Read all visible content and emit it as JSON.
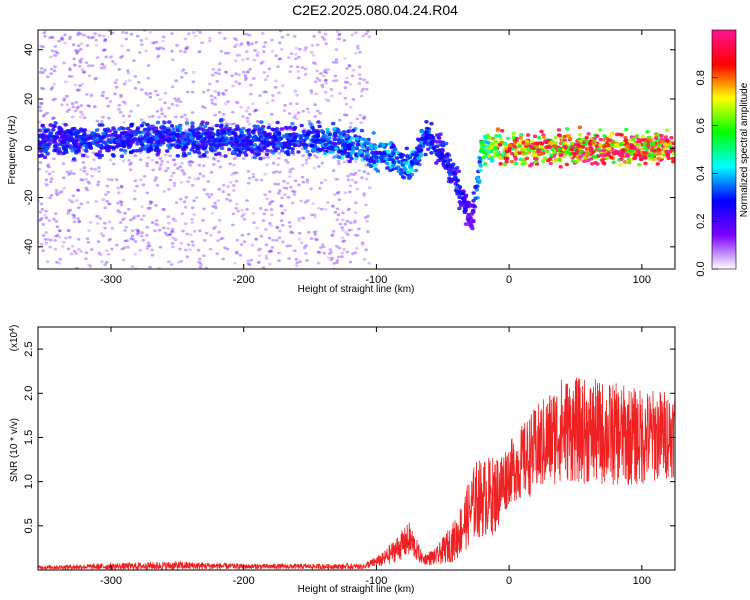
{
  "figure": {
    "title": "C2E2.2025.080.04.24.R04"
  },
  "chart_data": [
    {
      "type": "heatmap",
      "xlabel": "Height of straight line (km)",
      "ylabel": "Frequency (Hz)",
      "xlim": [
        -355,
        125
      ],
      "ylim": [
        -49,
        48
      ],
      "x_ticks": [
        -300,
        -200,
        -100,
        0,
        100
      ],
      "y_ticks": [
        -40,
        -20,
        0,
        20,
        40
      ],
      "colorbar": {
        "label": "Normalized spectral amplitude",
        "range": [
          0,
          1
        ],
        "ticks": [
          0.0,
          0.2,
          0.4,
          0.6,
          0.8
        ],
        "colormap": [
          "#ffffff",
          "#7a00ff",
          "#0000ff",
          "#00ffff",
          "#00ff00",
          "#ffff00",
          "#ff0000",
          "#ff1493"
        ]
      },
      "ridge": [
        {
          "x": -350,
          "f": 3,
          "amp": 0.3
        },
        {
          "x": -300,
          "f": 3,
          "amp": 0.3
        },
        {
          "x": -250,
          "f": 4,
          "amp": 0.32
        },
        {
          "x": -200,
          "f": 3,
          "amp": 0.3
        },
        {
          "x": -150,
          "f": 4,
          "amp": 0.32
        },
        {
          "x": -130,
          "f": 2,
          "amp": 0.35
        },
        {
          "x": -110,
          "f": 0,
          "amp": 0.35
        },
        {
          "x": -90,
          "f": -4,
          "amp": 0.38
        },
        {
          "x": -75,
          "f": -8,
          "amp": 0.4
        },
        {
          "x": -62,
          "f": 6,
          "amp": 0.3
        },
        {
          "x": -50,
          "f": -2,
          "amp": 0.28
        },
        {
          "x": -38,
          "f": -16,
          "amp": 0.3
        },
        {
          "x": -28,
          "f": -30,
          "amp": 0.15
        },
        {
          "x": -20,
          "f": 0,
          "amp": 0.55
        },
        {
          "x": 0,
          "f": 0,
          "amp": 0.85
        },
        {
          "x": 50,
          "f": 0,
          "amp": 0.9
        },
        {
          "x": 120,
          "f": 0,
          "amp": 0.9
        }
      ]
    },
    {
      "type": "line",
      "xlabel": "Height of straight line (km)",
      "ylabel": "SNR (10 * v/v)",
      "y_multiplier": "(x10",
      "y_multiplier_exp": "4",
      "xlim": [
        -355,
        125
      ],
      "ylim": [
        0,
        2.75
      ],
      "x_ticks": [
        -300,
        -200,
        -100,
        0,
        100
      ],
      "y_ticks": [
        0.5,
        1.0,
        1.5,
        2.0,
        2.5
      ],
      "series": [
        {
          "color": "#ee2222",
          "envelope": [
            {
              "x": -355,
              "mean": 0.03,
              "spread": 0.02
            },
            {
              "x": -250,
              "mean": 0.05,
              "spread": 0.05
            },
            {
              "x": -200,
              "mean": 0.04,
              "spread": 0.03
            },
            {
              "x": -110,
              "mean": 0.04,
              "spread": 0.03
            },
            {
              "x": -95,
              "mean": 0.12,
              "spread": 0.08
            },
            {
              "x": -75,
              "mean": 0.35,
              "spread": 0.2
            },
            {
              "x": -65,
              "mean": 0.12,
              "spread": 0.06
            },
            {
              "x": -55,
              "mean": 0.15,
              "spread": 0.1
            },
            {
              "x": -40,
              "mean": 0.35,
              "spread": 0.25
            },
            {
              "x": -25,
              "mean": 0.8,
              "spread": 0.45
            },
            {
              "x": -10,
              "mean": 0.85,
              "spread": 0.45
            },
            {
              "x": 0,
              "mean": 1.1,
              "spread": 0.35
            },
            {
              "x": 20,
              "mean": 1.35,
              "spread": 0.5
            },
            {
              "x": 40,
              "mean": 1.6,
              "spread": 0.6
            },
            {
              "x": 70,
              "mean": 1.55,
              "spread": 0.6
            },
            {
              "x": 100,
              "mean": 1.5,
              "spread": 0.55
            },
            {
              "x": 125,
              "mean": 1.55,
              "spread": 0.5
            }
          ]
        }
      ]
    }
  ]
}
